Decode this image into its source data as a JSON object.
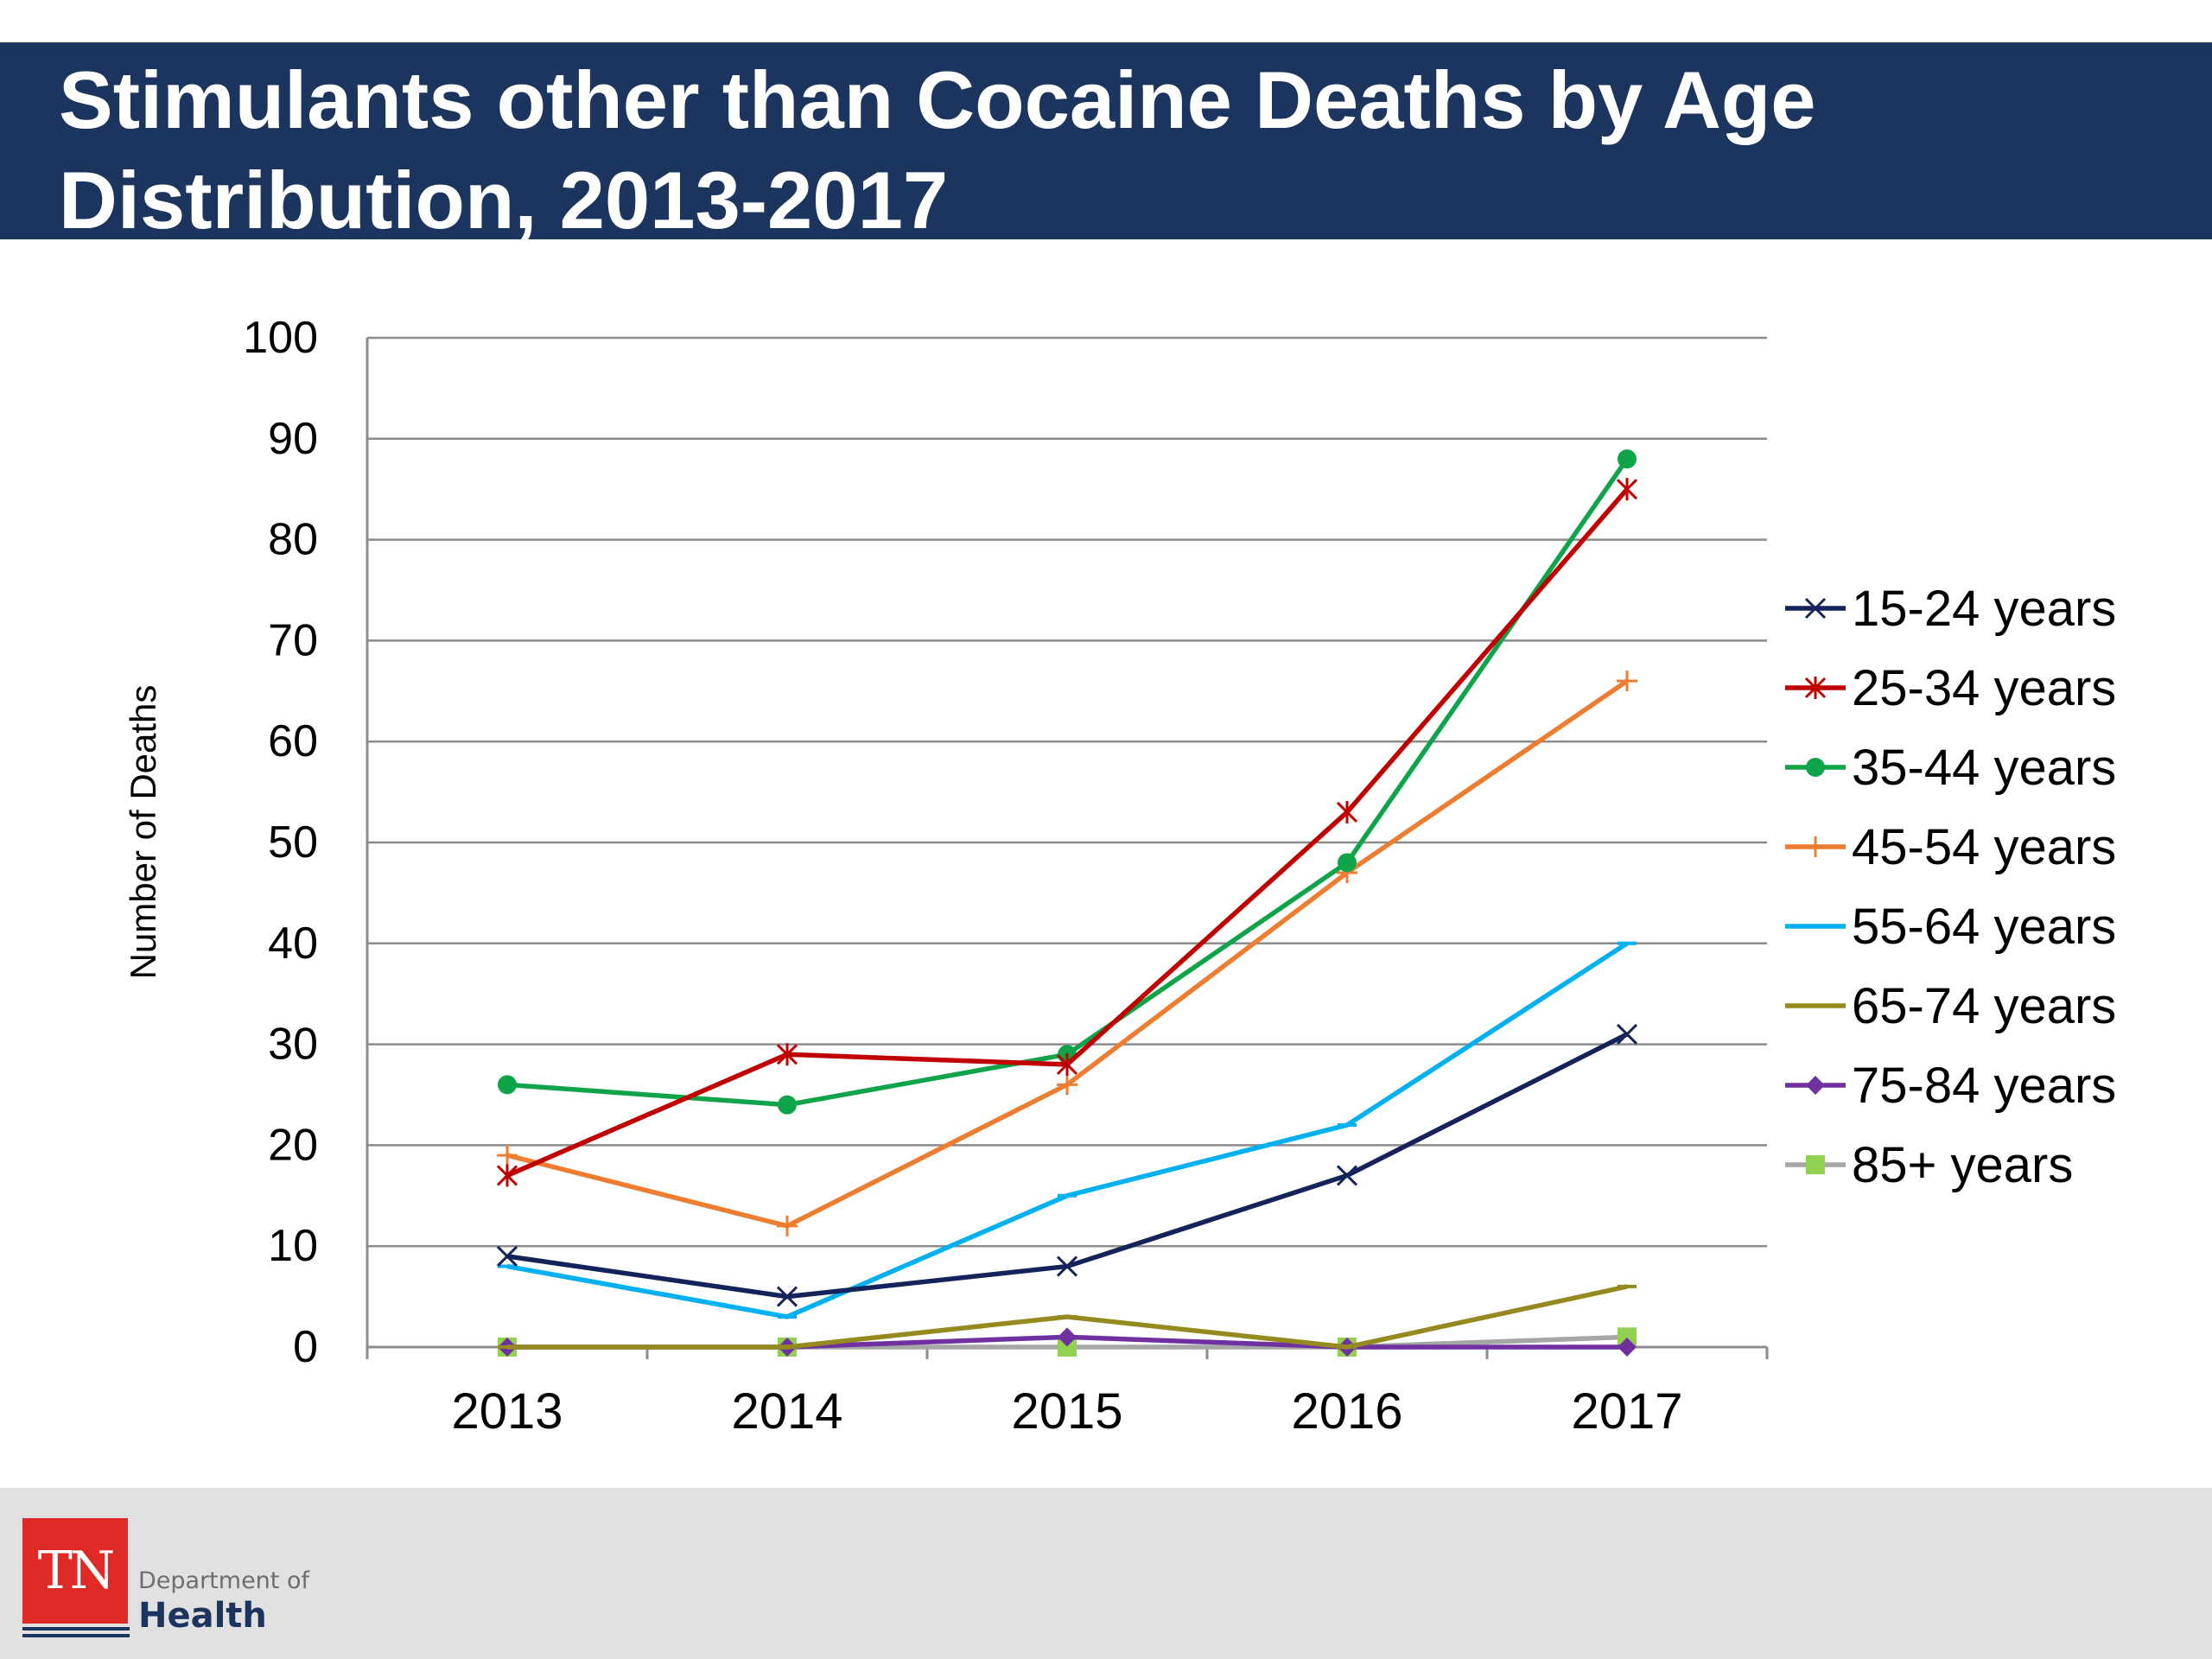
{
  "header": {
    "title_line1": "Stimulants other than Cocaine Deaths by Age",
    "title_line2": "Distribution, 2013-2017"
  },
  "footer": {
    "logo_abbrev": "TN",
    "logo_dept": "Department of",
    "logo_health": "Health"
  },
  "chart_data": {
    "type": "line",
    "title": "Stimulants other than Cocaine Deaths by Age Distribution, 2013-2017",
    "xlabel": "",
    "ylabel": "Number of Deaths",
    "categories": [
      "2013",
      "2014",
      "2015",
      "2016",
      "2017"
    ],
    "ylim": [
      0,
      100
    ],
    "yticks": [
      0,
      10,
      20,
      30,
      40,
      50,
      60,
      70,
      80,
      90,
      100
    ],
    "grid": true,
    "legend_position": "right",
    "series": [
      {
        "name": "15-24 years",
        "values": [
          9,
          5,
          8,
          17,
          31
        ],
        "color": "#14245a",
        "marker": "x"
      },
      {
        "name": "25-34 years",
        "values": [
          17,
          29,
          28,
          53,
          85
        ],
        "color": "#c00000",
        "marker": "star"
      },
      {
        "name": "35-44 years",
        "values": [
          26,
          24,
          29,
          48,
          88
        ],
        "color": "#10a44a",
        "marker": "circle"
      },
      {
        "name": "45-54 years",
        "values": [
          19,
          12,
          26,
          47,
          66
        ],
        "color": "#ed7d31",
        "marker": "plus"
      },
      {
        "name": "55-64 years",
        "values": [
          8,
          3,
          15,
          22,
          40
        ],
        "color": "#00b0f0",
        "marker": "dash"
      },
      {
        "name": "65-74 years",
        "values": [
          0,
          0,
          3,
          0,
          6
        ],
        "color": "#948a20",
        "marker": "dash"
      },
      {
        "name": "75-84 years",
        "values": [
          0,
          0,
          1,
          0,
          0
        ],
        "color": "#7030a0",
        "marker": "diamond"
      },
      {
        "name": "85+ years",
        "values": [
          0,
          0,
          0,
          0,
          1
        ],
        "color": "#a6a6a6",
        "marker": "square",
        "marker_color": "#92d050"
      }
    ]
  }
}
